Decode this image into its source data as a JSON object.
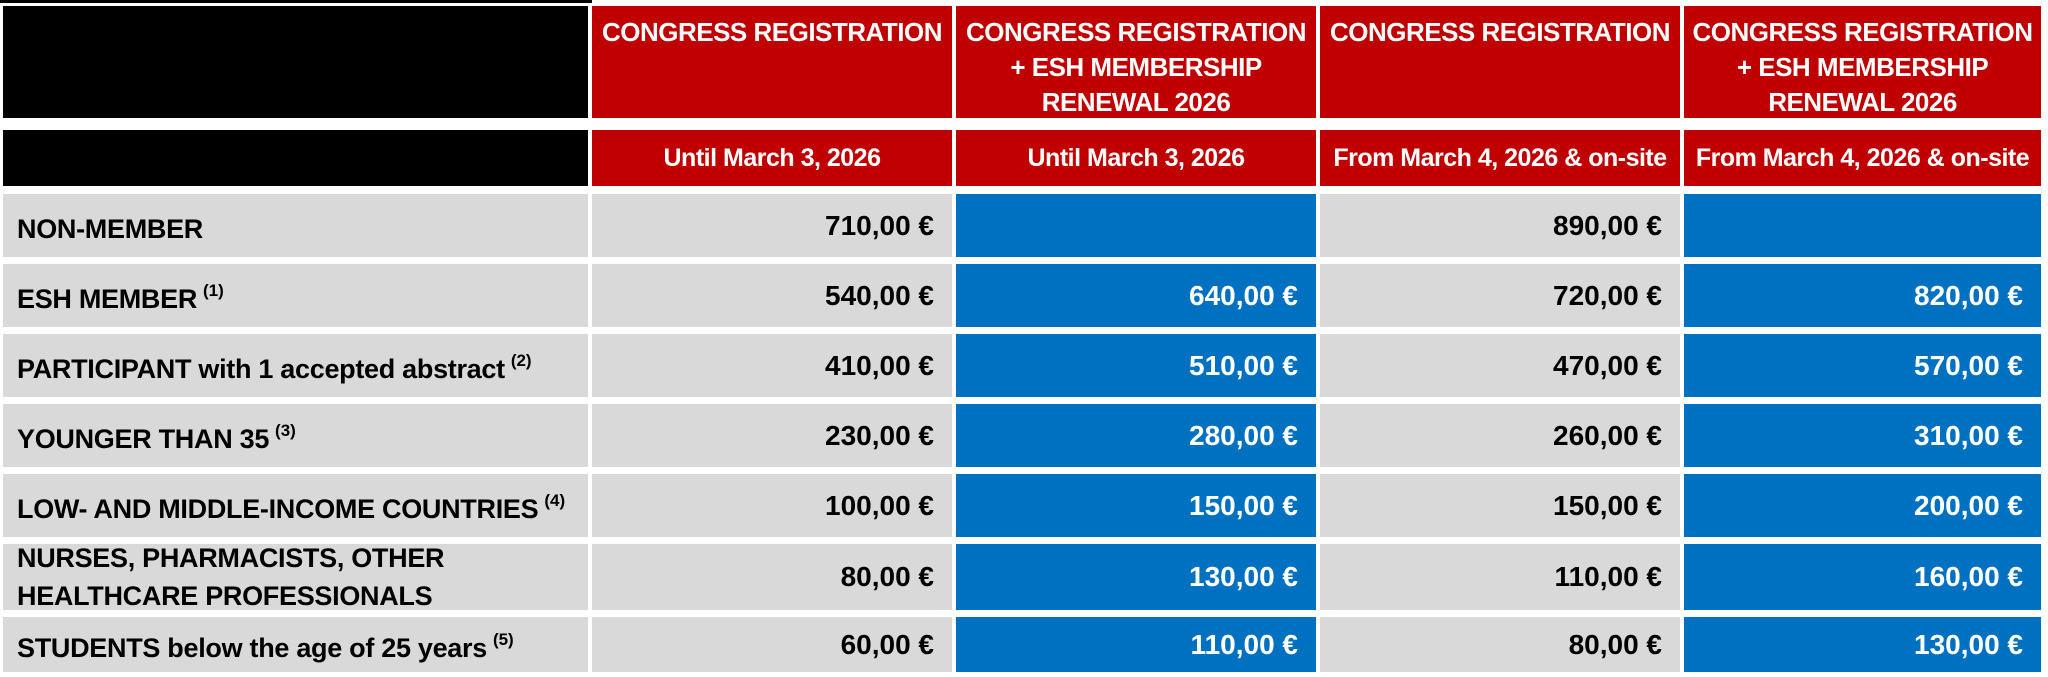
{
  "table": {
    "colors": {
      "header_red": "#C00000",
      "price_blue": "#0070C0",
      "cell_gray": "#D9D9D9",
      "redacted_black": "#000000",
      "grid_white": "#FFFFFF"
    },
    "columns": [
      {
        "title": "CONGRESS REGISTRATION",
        "subtitle": "Until March 3, 2026"
      },
      {
        "title": "CONGRESS REGISTRATION\n+ ESH MEMBERSHIP\nRENEWAL 2026",
        "subtitle": "Until March 3, 2026"
      },
      {
        "title": "CONGRESS REGISTRATION",
        "subtitle": "From March 4, 2026 & on-site"
      },
      {
        "title": "CONGRESS REGISTRATION\n+ ESH MEMBERSHIP\nRENEWAL 2026",
        "subtitle": "From March 4, 2026 & on-site"
      }
    ],
    "rows": [
      {
        "label": "NON-MEMBER",
        "sup": "",
        "prices": [
          "710,00 €",
          "",
          "890,00 €",
          ""
        ]
      },
      {
        "label": "ESH MEMBER",
        "sup": "(1)",
        "prices": [
          "540,00 €",
          "640,00 €",
          "720,00 €",
          "820,00 €"
        ]
      },
      {
        "label": "PARTICIPANT with 1 accepted abstract",
        "sup": "(2)",
        "prices": [
          "410,00 €",
          "510,00 €",
          "470,00 €",
          "570,00 €"
        ]
      },
      {
        "label": "YOUNGER THAN 35",
        "sup": "(3)",
        "prices": [
          "230,00 €",
          "280,00 €",
          "260,00 €",
          "310,00 €"
        ]
      },
      {
        "label": "LOW- AND MIDDLE-INCOME COUNTRIES",
        "sup": "(4)",
        "prices": [
          "100,00 €",
          "150,00 €",
          "150,00 €",
          "200,00 €"
        ]
      },
      {
        "label": "NURSES, PHARMACISTS, OTHER\nHEALTHCARE PROFESSIONALS",
        "sup": "",
        "prices": [
          "80,00 €",
          "130,00 €",
          "110,00 €",
          "160,00 €"
        ]
      },
      {
        "label": "STUDENTS below the age of 25 years",
        "sup": "(5)",
        "prices": [
          "60,00 €",
          "110,00 €",
          "80,00 €",
          "130,00 €"
        ]
      }
    ]
  }
}
